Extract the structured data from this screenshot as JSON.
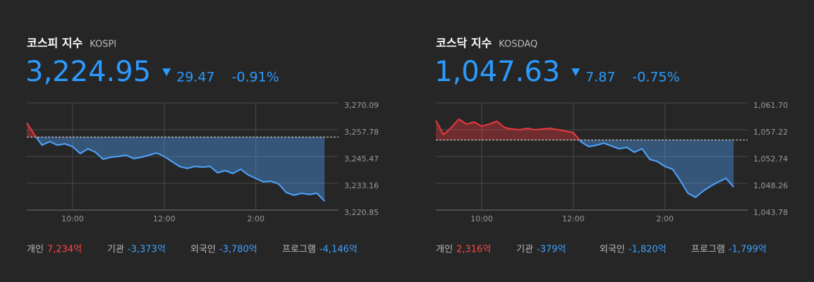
{
  "chart_data": [
    {
      "type": "line",
      "title": "코스피 지수",
      "subtitle": "KOSPI",
      "price": "3,224.95",
      "change": "29.47",
      "change_pct": "-0.91%",
      "categories": [
        null,
        null,
        null,
        null,
        null,
        null,
        "10:00",
        null,
        null,
        null,
        null,
        null,
        null,
        null,
        null,
        null,
        null,
        null,
        "12:00",
        null,
        null,
        null,
        null,
        null,
        null,
        null,
        null,
        null,
        null,
        null,
        "2:00",
        null,
        null,
        null,
        null,
        null,
        null,
        null,
        null,
        null
      ],
      "values": [
        3261.0,
        3255.5,
        3250.7,
        3252.3,
        3250.7,
        3251.3,
        3250.0,
        3246.8,
        3249.0,
        3247.4,
        3244.2,
        3245.1,
        3245.5,
        3246.1,
        3244.5,
        3245.1,
        3246.1,
        3247.1,
        3245.5,
        3243.2,
        3240.9,
        3240.0,
        3240.9,
        3240.6,
        3240.9,
        3238.0,
        3239.0,
        3237.7,
        3239.6,
        3237.0,
        3235.4,
        3233.8,
        3234.1,
        3232.8,
        3228.9,
        3227.7,
        3228.6,
        3228.0,
        3228.6,
        3224.95
      ],
      "reference": 3254.42,
      "ylim": [
        3220.85,
        3270.09
      ],
      "yticks": [
        {
          "value": 3220.85,
          "label": "3,220.85"
        },
        {
          "value": 3233.16,
          "label": "3,233.16"
        },
        {
          "value": 3245.47,
          "label": "3,245.47"
        },
        {
          "value": 3257.78,
          "label": "3,257.78"
        },
        {
          "value": 3270.09,
          "label": "3,270.09"
        }
      ],
      "grid": true,
      "up_color": "#e8383d",
      "down_color": "#4da3ff",
      "price_color": "#2b9bff",
      "investors": [
        {
          "name": "개인",
          "value": "7,234억",
          "color": "#ff4545"
        },
        {
          "name": "기관",
          "value": "-3,373억",
          "color": "#3fa0ff"
        },
        {
          "name": "외국인",
          "value": "-3,780억",
          "color": "#3fa0ff"
        },
        {
          "name": "프로그램",
          "value": "-4,146억",
          "color": "#3fa0ff"
        }
      ]
    },
    {
      "type": "line",
      "title": "코스닥 지수",
      "subtitle": "KOSDAQ",
      "price": "1,047.63",
      "change": "7.87",
      "change_pct": "-0.75%",
      "categories": [
        null,
        null,
        null,
        null,
        null,
        null,
        "10:00",
        null,
        null,
        null,
        null,
        null,
        null,
        null,
        null,
        null,
        null,
        null,
        "12:00",
        null,
        null,
        null,
        null,
        null,
        null,
        null,
        null,
        null,
        null,
        null,
        "2:00",
        null,
        null,
        null,
        null,
        null,
        null,
        null,
        null,
        null
      ],
      "values": [
        1058.75,
        1056.39,
        1057.57,
        1058.99,
        1058.16,
        1058.52,
        1057.81,
        1058.16,
        1058.64,
        1057.57,
        1057.34,
        1057.22,
        1057.46,
        1057.22,
        1057.34,
        1057.46,
        1057.22,
        1056.98,
        1056.75,
        1055.22,
        1054.39,
        1054.63,
        1054.98,
        1054.51,
        1054.04,
        1054.27,
        1053.45,
        1054.04,
        1052.27,
        1051.91,
        1051.09,
        1050.62,
        1048.73,
        1046.61,
        1045.9,
        1046.96,
        1047.79,
        1048.5,
        1049.08,
        1047.63
      ],
      "reference": 1055.5,
      "ylim": [
        1043.78,
        1061.7
      ],
      "yticks": [
        {
          "value": 1043.78,
          "label": "1,043.78"
        },
        {
          "value": 1048.26,
          "label": "1,048.26"
        },
        {
          "value": 1052.74,
          "label": "1,052.74"
        },
        {
          "value": 1057.22,
          "label": "1,057.22"
        },
        {
          "value": 1061.7,
          "label": "1,061.70"
        }
      ],
      "grid": true,
      "up_color": "#e8383d",
      "down_color": "#4da3ff",
      "price_color": "#2b9bff",
      "investors": [
        {
          "name": "개인",
          "value": "2,316억",
          "color": "#ff4545"
        },
        {
          "name": "기관",
          "value": "-379억",
          "color": "#3fa0ff"
        },
        {
          "name": "외국인",
          "value": "-1,820억",
          "color": "#3fa0ff"
        },
        {
          "name": "프로그램",
          "value": "-1,799억",
          "color": "#3fa0ff"
        }
      ]
    }
  ]
}
